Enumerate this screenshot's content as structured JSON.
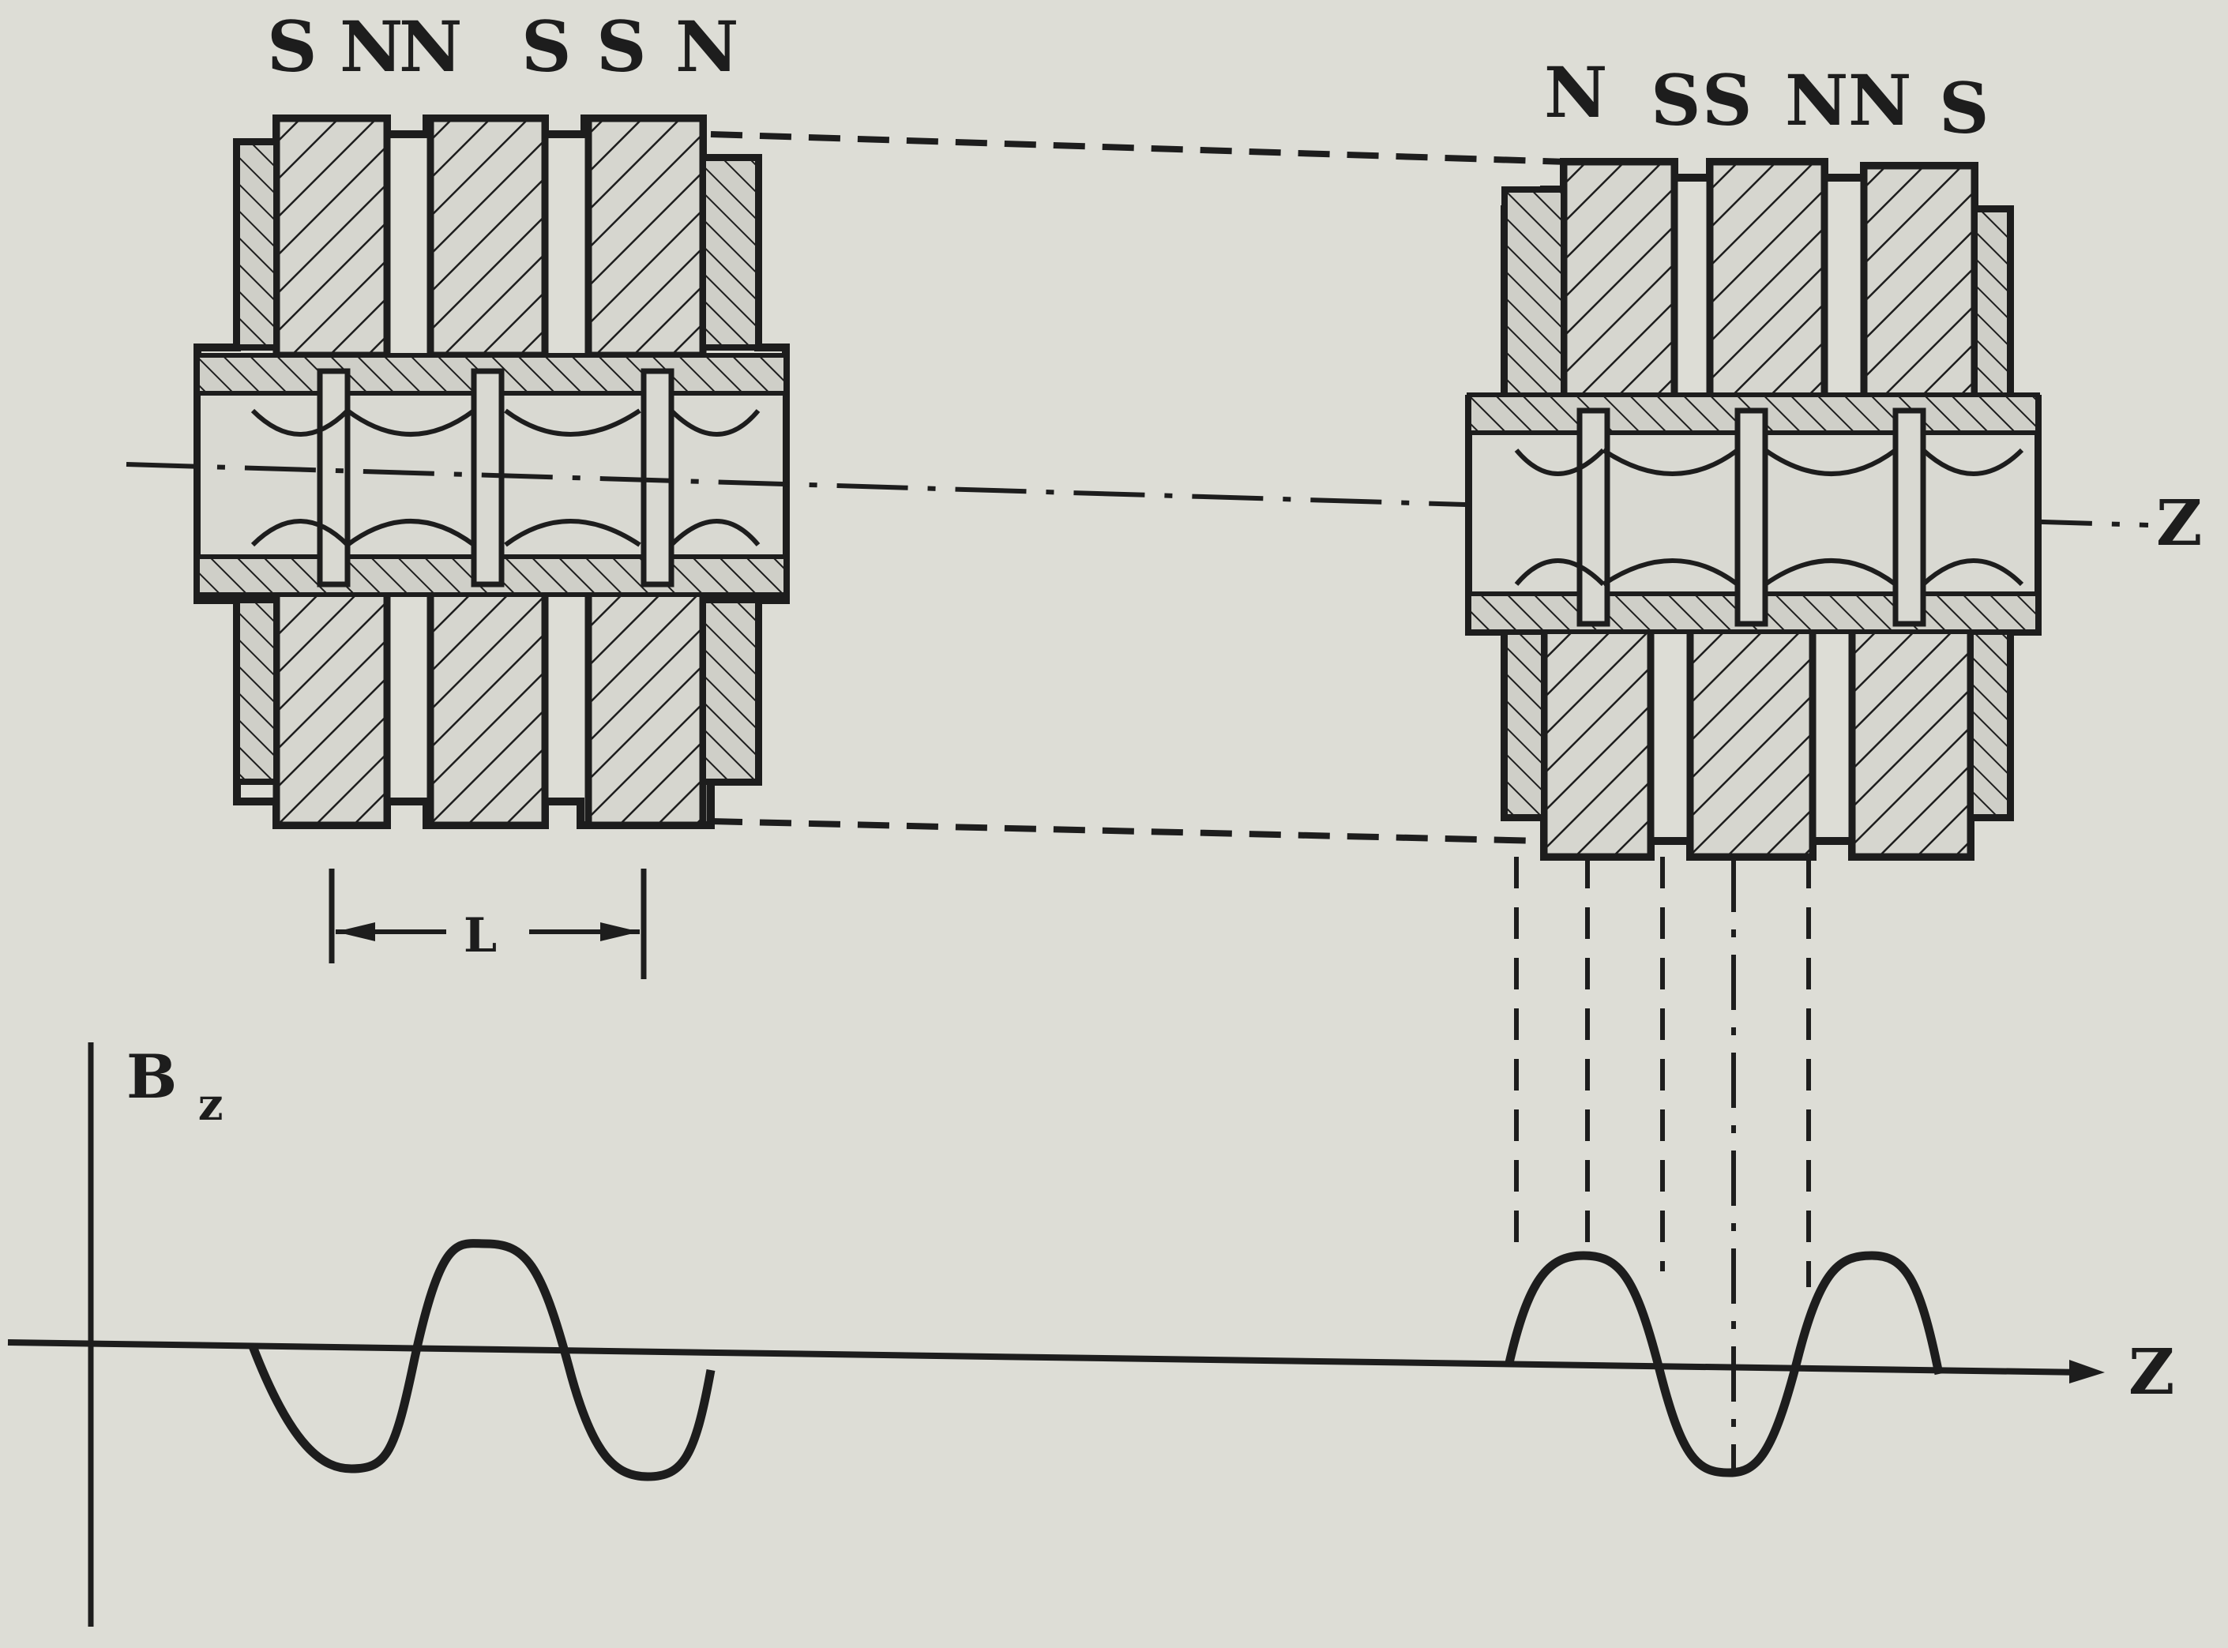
{
  "left_stack": {
    "pole_labels": [
      "S",
      "N",
      "N",
      "S",
      "S",
      "N"
    ],
    "period_label": "L"
  },
  "right_stack": {
    "pole_labels": [
      "N",
      "S",
      "S",
      "N",
      "N",
      "S"
    ]
  },
  "axes": {
    "z_label": "Z",
    "bz_label": "B",
    "bz_subscript": "z"
  },
  "colors": {
    "paper": "#ddddd6",
    "ink": "#1d1d1d",
    "magnet_fill": "#d6d6cf"
  }
}
